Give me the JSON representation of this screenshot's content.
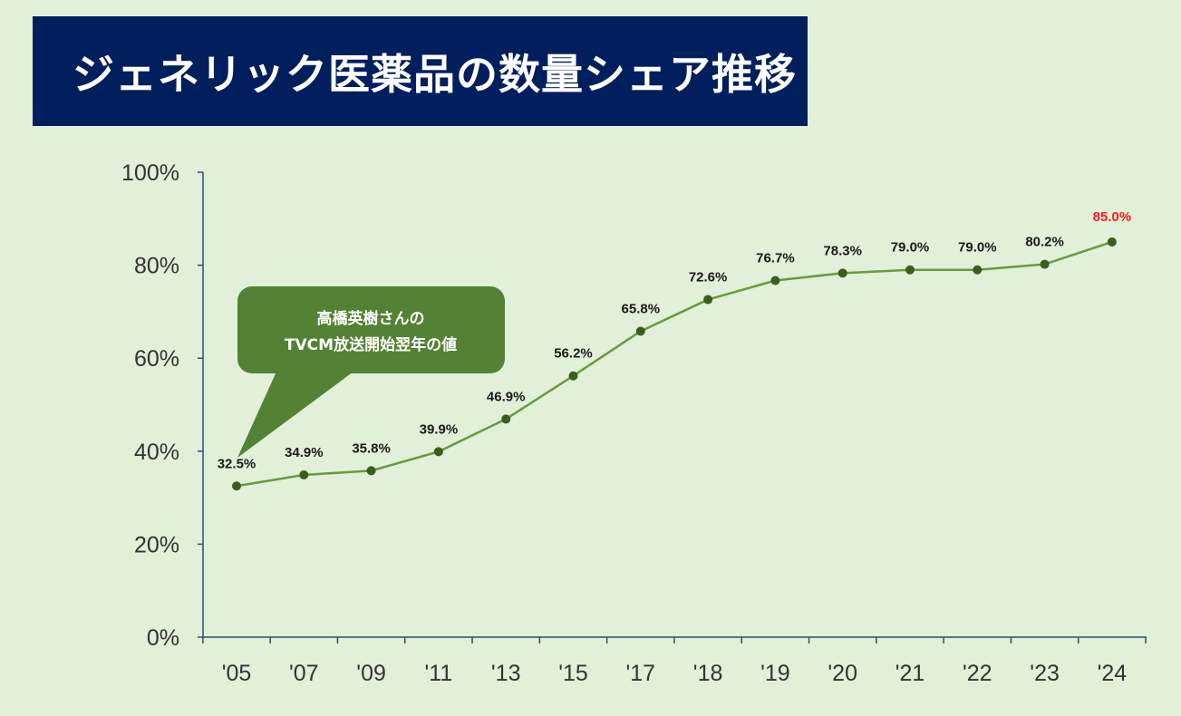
{
  "title": "ジェネリック医薬品の数量シェア推移",
  "callout": {
    "line1": "高橋英樹さんの",
    "line2": "TVCM放送開始翌年の値"
  },
  "colors": {
    "background": "#e2efd9",
    "banner": "#001f5c",
    "line": "#6a9a3a",
    "marker": "#3b5e1f",
    "callout": "#548235",
    "highlight_label": "#ff1a1a"
  },
  "chart_data": {
    "type": "line",
    "title": "ジェネリック医薬品の数量シェア推移",
    "categories": [
      "'05",
      "'07",
      "'09",
      "'11",
      "'13",
      "'15",
      "'17",
      "'18",
      "'19",
      "'20",
      "'21",
      "'22",
      "'23",
      "'24"
    ],
    "series": [
      {
        "values": [
          32.5,
          34.9,
          35.8,
          39.9,
          46.9,
          56.2,
          65.8,
          72.6,
          76.7,
          78.3,
          79.0,
          79.0,
          80.2,
          85.0
        ],
        "labels": [
          "32.5%",
          "34.9%",
          "35.8%",
          "39.9%",
          "46.9%",
          "56.2%",
          "65.8%",
          "72.6%",
          "76.7%",
          "78.3%",
          "79.0%",
          "79.0%",
          "80.2%",
          "85.0%"
        ]
      }
    ],
    "highlight_index": 13,
    "ylim": [
      0,
      100
    ],
    "yticks": [
      "0%",
      "20%",
      "40%",
      "60%",
      "80%",
      "100%"
    ],
    "grid": false,
    "legend": "none"
  }
}
